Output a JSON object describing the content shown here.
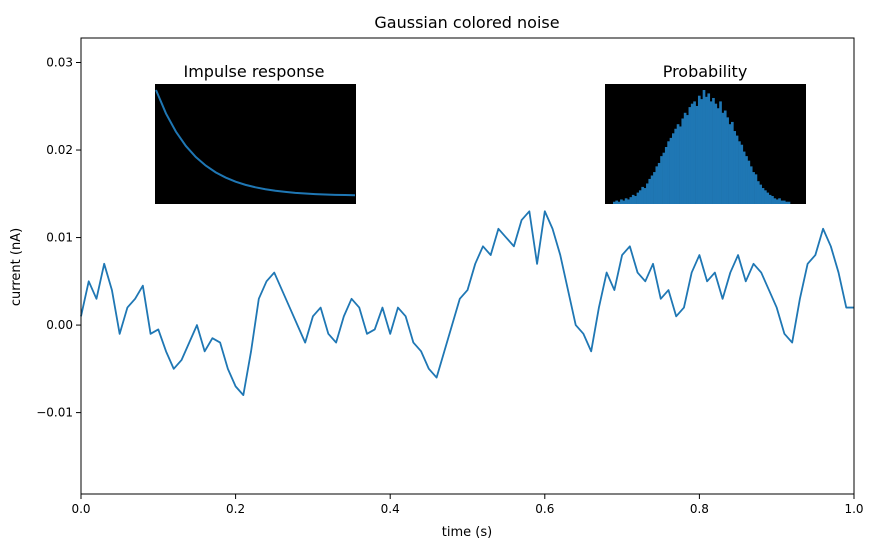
{
  "chart_data": [
    {
      "type": "line",
      "title": "Gaussian colored noise",
      "xlabel": "time (s)",
      "ylabel": "current (nA)",
      "xlim": [
        0,
        1
      ],
      "ylim": [
        -0.0193,
        0.0328
      ],
      "xticks": [
        "0.0",
        "0.2",
        "0.4",
        "0.6",
        "0.8",
        "1.0"
      ],
      "xtick_values": [
        0,
        0.2,
        0.4,
        0.6,
        0.8,
        1.0
      ],
      "yticks": [
        "−0.01",
        "0.00",
        "0.01",
        "0.02",
        "0.03"
      ],
      "ytick_values": [
        -0.01,
        0,
        0.01,
        0.02,
        0.03
      ],
      "grid": false,
      "line_color": "#1f77b4",
      "series": [
        {
          "x": [
            0.0,
            0.01,
            0.02,
            0.03,
            0.04,
            0.05,
            0.06,
            0.07,
            0.08,
            0.09,
            0.1,
            0.11,
            0.12,
            0.13,
            0.14,
            0.15,
            0.16,
            0.17,
            0.18,
            0.19,
            0.2,
            0.21,
            0.22,
            0.23,
            0.24,
            0.25,
            0.26,
            0.27,
            0.28,
            0.29,
            0.3,
            0.31,
            0.32,
            0.33,
            0.34,
            0.35,
            0.36,
            0.37,
            0.38,
            0.39,
            0.4,
            0.41,
            0.42,
            0.43,
            0.44,
            0.45,
            0.46,
            0.47,
            0.48,
            0.49,
            0.5,
            0.51,
            0.52,
            0.53,
            0.54,
            0.55,
            0.56,
            0.57,
            0.58,
            0.59,
            0.6,
            0.61,
            0.62,
            0.63,
            0.64,
            0.65,
            0.66,
            0.67,
            0.68,
            0.69,
            0.7,
            0.71,
            0.72,
            0.73,
            0.74,
            0.75,
            0.76,
            0.77,
            0.78,
            0.79,
            0.8,
            0.81,
            0.82,
            0.83,
            0.84,
            0.85,
            0.86,
            0.87,
            0.88,
            0.89,
            0.9,
            0.91,
            0.92,
            0.93,
            0.94,
            0.95,
            0.96,
            0.97,
            0.98,
            0.99,
            1.0
          ],
          "values": [
            0.001,
            0.005,
            0.003,
            0.007,
            0.004,
            -0.001,
            0.002,
            0.003,
            0.0045,
            -0.001,
            -0.0005,
            -0.003,
            -0.005,
            -0.004,
            -0.002,
            0.0,
            -0.003,
            -0.0015,
            -0.002,
            -0.005,
            -0.007,
            -0.008,
            -0.003,
            0.003,
            0.005,
            0.006,
            0.004,
            0.002,
            0.0,
            -0.002,
            0.001,
            0.002,
            -0.001,
            -0.002,
            0.001,
            0.003,
            0.002,
            -0.001,
            -0.0005,
            0.002,
            -0.001,
            0.002,
            0.001,
            -0.002,
            -0.003,
            -0.005,
            -0.006,
            -0.003,
            0.0,
            0.003,
            0.004,
            0.007,
            0.009,
            0.008,
            0.011,
            0.01,
            0.009,
            0.012,
            0.013,
            0.007,
            0.013,
            0.011,
            0.008,
            0.004,
            0.0,
            -0.001,
            -0.003,
            0.002,
            0.006,
            0.004,
            0.008,
            0.009,
            0.006,
            0.005,
            0.007,
            0.003,
            0.004,
            0.001,
            0.002,
            0.006,
            0.008,
            0.005,
            0.006,
            0.003,
            0.006,
            0.008,
            0.005,
            0.007,
            0.006,
            0.004,
            0.002,
            -0.001,
            -0.002,
            0.003,
            0.007,
            0.008,
            0.011,
            0.009,
            0.006,
            0.002,
            0.002
          ]
        }
      ]
    },
    {
      "type": "line",
      "title": "Impulse response",
      "background": "#000000",
      "line_color": "#1f77b4",
      "series": [
        {
          "x": [
            0,
            0.05,
            0.1,
            0.15,
            0.2,
            0.25,
            0.3,
            0.35,
            0.4,
            0.45,
            0.5,
            0.55,
            0.6,
            0.65,
            0.7,
            0.75,
            0.8,
            0.85,
            0.9,
            0.95,
            1.0
          ],
          "values": [
            1.0,
            0.779,
            0.607,
            0.472,
            0.368,
            0.287,
            0.223,
            0.174,
            0.135,
            0.105,
            0.082,
            0.064,
            0.05,
            0.039,
            0.03,
            0.024,
            0.018,
            0.014,
            0.011,
            0.009,
            0.007
          ]
        }
      ]
    },
    {
      "type": "bar",
      "title": "Probability",
      "background": "#000000",
      "bar_color": "#1f77b4",
      "values": [
        0.02,
        0.03,
        0.02,
        0.04,
        0.03,
        0.05,
        0.04,
        0.06,
        0.08,
        0.07,
        0.1,
        0.12,
        0.15,
        0.14,
        0.18,
        0.22,
        0.25,
        0.28,
        0.33,
        0.36,
        0.42,
        0.45,
        0.5,
        0.55,
        0.58,
        0.62,
        0.66,
        0.7,
        0.68,
        0.75,
        0.8,
        0.78,
        0.85,
        0.88,
        0.9,
        0.86,
        0.95,
        0.92,
        1.0,
        0.94,
        0.97,
        0.9,
        0.93,
        0.88,
        0.84,
        0.9,
        0.8,
        0.82,
        0.76,
        0.7,
        0.72,
        0.64,
        0.6,
        0.55,
        0.52,
        0.46,
        0.42,
        0.38,
        0.33,
        0.28,
        0.26,
        0.2,
        0.17,
        0.14,
        0.12,
        0.1,
        0.08,
        0.07,
        0.05,
        0.04,
        0.05,
        0.03,
        0.03,
        0.02,
        0.02
      ]
    }
  ]
}
